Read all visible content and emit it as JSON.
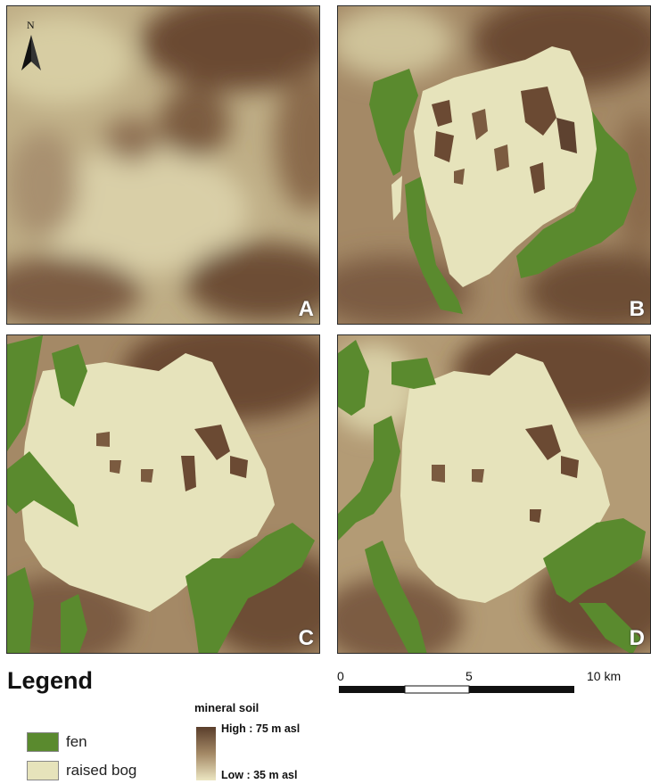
{
  "panels": [
    {
      "label": "A"
    },
    {
      "label": "B"
    },
    {
      "label": "C"
    },
    {
      "label": "D"
    }
  ],
  "north_arrow": {
    "letter": "N"
  },
  "legend": {
    "title": "Legend",
    "items": [
      {
        "label": "fen",
        "color": "#5a8a2e"
      },
      {
        "label": "raised bog",
        "color": "#e6e3bb"
      }
    ],
    "mineral_soil": {
      "title": "mineral soil",
      "high": "High : 75 m asl",
      "low": "Low : 35 m asl",
      "color_high": "#5a3e2b",
      "color_low": "#ece6c2"
    }
  },
  "scale_bar": {
    "ticks": [
      "0",
      "5",
      "10 km"
    ]
  },
  "colors": {
    "fen": "#5a8a2e",
    "raised_bog": "#e6e3bb",
    "terrain_high": "#6b4a33",
    "terrain_mid": "#a48966",
    "terrain_low": "#d8cfa6"
  }
}
